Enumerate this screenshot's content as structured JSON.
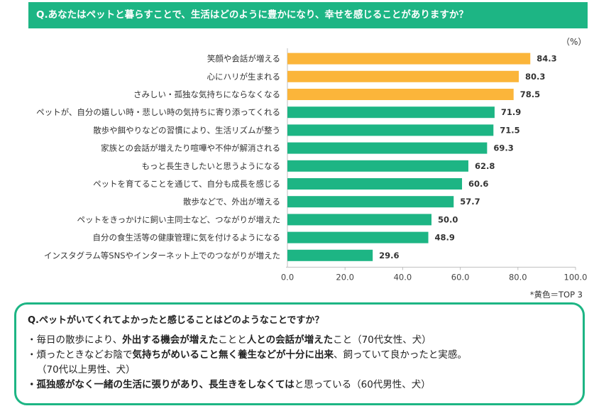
{
  "question_title": "Q.あなたはペットと暮らすことで、生活はどのように豊かになり、幸せを感じることがありますか？",
  "unit_label": "（%）",
  "note": "*黄色＝TOP 3",
  "colors": {
    "highlight": "#fbb53a",
    "primary": "#1db584",
    "axis": "#bfbfbf",
    "grid": "#e4e4e4"
  },
  "chart_data": {
    "type": "bar",
    "orientation": "horizontal",
    "categories": [
      "笑顔や会話が増える",
      "心にハリが生まれる",
      "さみしい・孤独な気持ちにならなくなる",
      "ペットが、自分の嬉しい時・悲しい時の気持ちに寄り添ってくれる",
      "散歩や餌やりなどの習慣により、生活リズムが整う",
      "家族との会話が増えたり喧嘩や不仲が解消される",
      "もっと長生きしたいと思うようになる",
      "ペットを育てることを通じて、自分も成長を感じる",
      "散歩などで、外出が増える",
      "ペットをきっかけに飼い主同士など、つながりが増えた",
      "自分の食生活等の健康管理に気を付けるようになる",
      "インスタグラム等SNSやインターネット上でのつながりが増えた"
    ],
    "values": [
      84.3,
      80.3,
      78.5,
      71.9,
      71.5,
      69.3,
      62.8,
      60.6,
      57.7,
      50.0,
      48.9,
      29.6
    ],
    "value_labels": [
      "84.3",
      "80.3",
      "78.5",
      "71.9",
      "71.5",
      "69.3",
      "62.8",
      "60.6",
      "57.7",
      "50.0",
      "48.9",
      "29.6"
    ],
    "highlight_top": 3,
    "xlim": [
      0,
      100
    ],
    "xticks": [
      0,
      20,
      40,
      60,
      80,
      100
    ],
    "xtick_labels": [
      "0.0",
      "20.0",
      "40.0",
      "60.0",
      "80.0",
      "100.0"
    ]
  },
  "comments": {
    "title": "Q.ペットがいてくれてよかったと感じることはどのようなことですか？",
    "c1": {
      "a": "・毎日の散歩により、",
      "b": "外出する機会が増えた",
      "c": "ことと",
      "d": "人との会話が増えた",
      "e": "こと（70代女性、犬）"
    },
    "c2": {
      "a": "・煩ったときなどお陰で",
      "b": "気持ちがめいること無く養生などが十分に出来",
      "c": "、飼っていて良かったと実感。",
      "d": "（70代以上男性、犬）"
    },
    "c3": {
      "a": "・孤独感がなく一緒の生活に張りがあり、長生きをしなくては",
      "b": "と思っている（60代男性、犬）"
    }
  }
}
